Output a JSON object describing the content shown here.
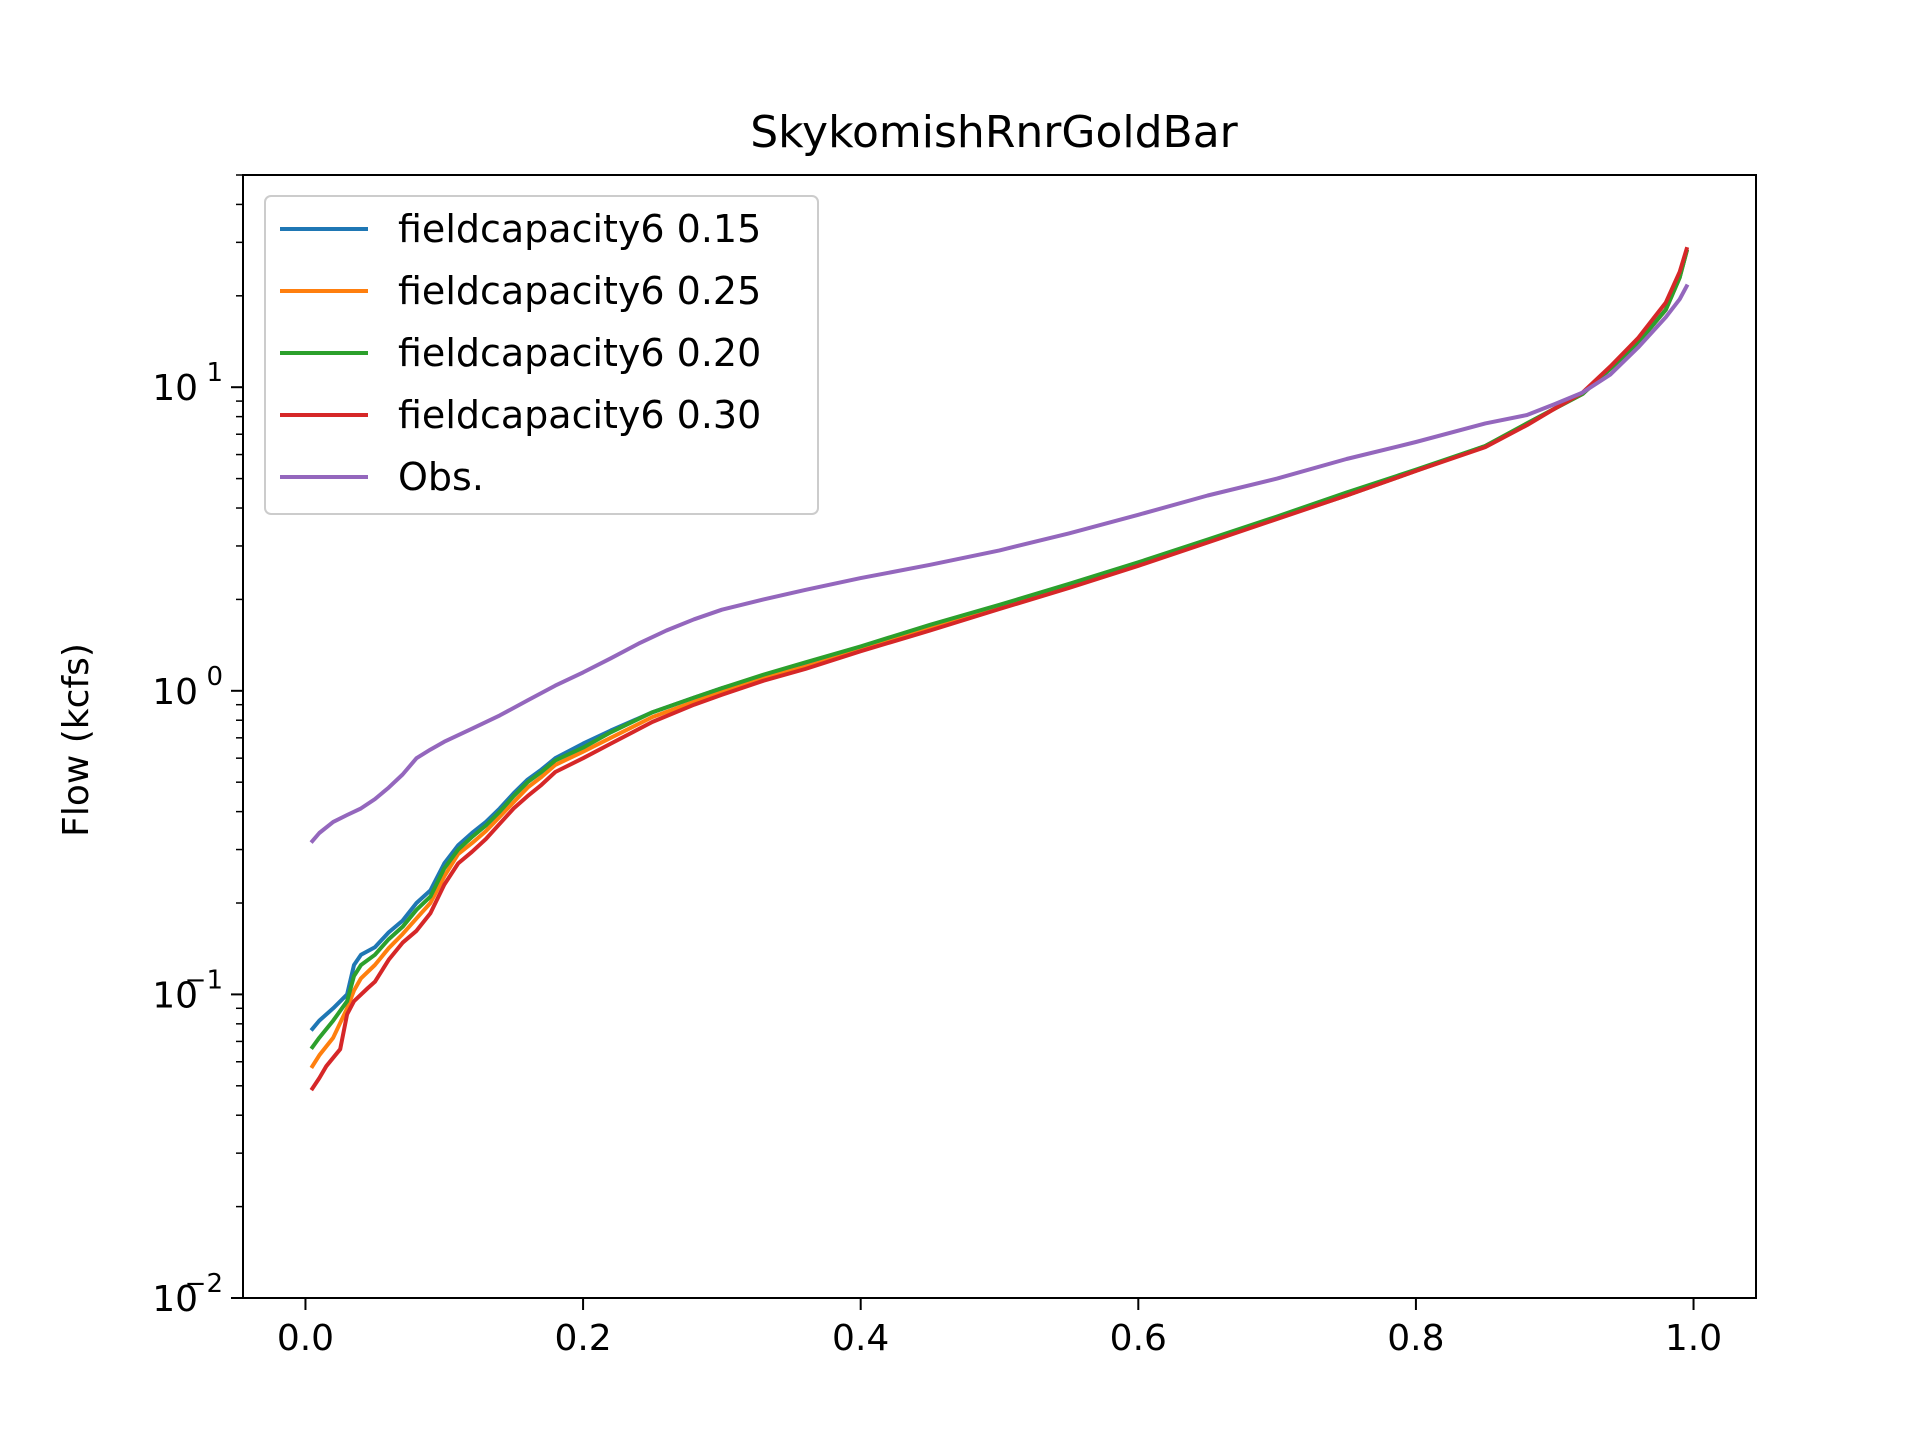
{
  "chart_data": {
    "type": "line",
    "title": "SkykomishRnrGoldBar",
    "xlabel": "",
    "ylabel": "Flow (kcfs)",
    "xlim": [
      -0.045,
      1.045
    ],
    "ylim": [
      0.01,
      50
    ],
    "yscale": "log",
    "grid": false,
    "legend_position": "top-left",
    "x_ticks": [
      {
        "value": 0.0,
        "label": "0.0"
      },
      {
        "value": 0.2,
        "label": "0.2"
      },
      {
        "value": 0.4,
        "label": "0.4"
      },
      {
        "value": 0.6,
        "label": "0.6"
      },
      {
        "value": 0.8,
        "label": "0.8"
      },
      {
        "value": 1.0,
        "label": "1.0"
      }
    ],
    "y_ticks": [
      {
        "value": 0.01,
        "base": "10",
        "exp": "−2"
      },
      {
        "value": 0.1,
        "base": "10",
        "exp": "−1"
      },
      {
        "value": 1,
        "base": "10",
        "exp": "0"
      },
      {
        "value": 10,
        "base": "10",
        "exp": "1"
      }
    ],
    "series": [
      {
        "name": "fieldcapacity6 0.15",
        "color": "#1f77b4",
        "points": [
          [
            0.005,
            0.077
          ],
          [
            0.01,
            0.082
          ],
          [
            0.02,
            0.09
          ],
          [
            0.03,
            0.1
          ],
          [
            0.035,
            0.125
          ],
          [
            0.04,
            0.135
          ],
          [
            0.05,
            0.143
          ],
          [
            0.06,
            0.16
          ],
          [
            0.07,
            0.175
          ],
          [
            0.08,
            0.2
          ],
          [
            0.09,
            0.22
          ],
          [
            0.1,
            0.27
          ],
          [
            0.11,
            0.31
          ],
          [
            0.12,
            0.34
          ],
          [
            0.13,
            0.37
          ],
          [
            0.14,
            0.41
          ],
          [
            0.15,
            0.46
          ],
          [
            0.16,
            0.51
          ],
          [
            0.17,
            0.55
          ],
          [
            0.18,
            0.6
          ],
          [
            0.2,
            0.67
          ],
          [
            0.22,
            0.74
          ],
          [
            0.25,
            0.85
          ],
          [
            0.28,
            0.95
          ],
          [
            0.3,
            1.02
          ],
          [
            0.33,
            1.12
          ],
          [
            0.36,
            1.23
          ],
          [
            0.4,
            1.38
          ],
          [
            0.45,
            1.62
          ],
          [
            0.5,
            1.9
          ],
          [
            0.55,
            2.2
          ],
          [
            0.6,
            2.6
          ],
          [
            0.65,
            3.1
          ],
          [
            0.7,
            3.7
          ],
          [
            0.75,
            4.4
          ],
          [
            0.8,
            5.3
          ],
          [
            0.85,
            6.4
          ],
          [
            0.88,
            7.6
          ],
          [
            0.9,
            8.5
          ],
          [
            0.92,
            9.5
          ],
          [
            0.94,
            11.5
          ],
          [
            0.96,
            14
          ],
          [
            0.98,
            18
          ],
          [
            0.99,
            23
          ],
          [
            0.995,
            28
          ]
        ]
      },
      {
        "name": "fieldcapacity6 0.25",
        "color": "#ff7f0e",
        "points": [
          [
            0.005,
            0.058
          ],
          [
            0.01,
            0.063
          ],
          [
            0.02,
            0.072
          ],
          [
            0.03,
            0.09
          ],
          [
            0.035,
            0.103
          ],
          [
            0.04,
            0.113
          ],
          [
            0.05,
            0.125
          ],
          [
            0.06,
            0.142
          ],
          [
            0.07,
            0.158
          ],
          [
            0.08,
            0.178
          ],
          [
            0.09,
            0.2
          ],
          [
            0.1,
            0.245
          ],
          [
            0.11,
            0.29
          ],
          [
            0.12,
            0.315
          ],
          [
            0.13,
            0.345
          ],
          [
            0.14,
            0.385
          ],
          [
            0.15,
            0.43
          ],
          [
            0.16,
            0.48
          ],
          [
            0.17,
            0.52
          ],
          [
            0.18,
            0.57
          ],
          [
            0.2,
            0.63
          ],
          [
            0.22,
            0.7
          ],
          [
            0.25,
            0.82
          ],
          [
            0.28,
            0.92
          ],
          [
            0.3,
            0.99
          ],
          [
            0.33,
            1.1
          ],
          [
            0.36,
            1.2
          ],
          [
            0.4,
            1.36
          ],
          [
            0.45,
            1.6
          ],
          [
            0.5,
            1.88
          ],
          [
            0.55,
            2.2
          ],
          [
            0.6,
            2.6
          ],
          [
            0.65,
            3.1
          ],
          [
            0.7,
            3.7
          ],
          [
            0.75,
            4.4
          ],
          [
            0.8,
            5.3
          ],
          [
            0.85,
            6.4
          ],
          [
            0.88,
            7.6
          ],
          [
            0.9,
            8.5
          ],
          [
            0.92,
            9.5
          ],
          [
            0.94,
            11.5
          ],
          [
            0.96,
            14
          ],
          [
            0.98,
            18
          ],
          [
            0.99,
            23
          ],
          [
            0.995,
            28
          ]
        ]
      },
      {
        "name": "fieldcapacity6 0.20",
        "color": "#2ca02c",
        "points": [
          [
            0.005,
            0.067
          ],
          [
            0.01,
            0.072
          ],
          [
            0.02,
            0.082
          ],
          [
            0.03,
            0.095
          ],
          [
            0.035,
            0.115
          ],
          [
            0.04,
            0.125
          ],
          [
            0.05,
            0.135
          ],
          [
            0.06,
            0.152
          ],
          [
            0.07,
            0.167
          ],
          [
            0.08,
            0.19
          ],
          [
            0.09,
            0.21
          ],
          [
            0.1,
            0.26
          ],
          [
            0.11,
            0.3
          ],
          [
            0.12,
            0.33
          ],
          [
            0.13,
            0.36
          ],
          [
            0.14,
            0.4
          ],
          [
            0.15,
            0.45
          ],
          [
            0.16,
            0.5
          ],
          [
            0.17,
            0.54
          ],
          [
            0.18,
            0.59
          ],
          [
            0.2,
            0.65
          ],
          [
            0.22,
            0.73
          ],
          [
            0.25,
            0.85
          ],
          [
            0.28,
            0.95
          ],
          [
            0.3,
            1.02
          ],
          [
            0.33,
            1.13
          ],
          [
            0.36,
            1.24
          ],
          [
            0.4,
            1.4
          ],
          [
            0.45,
            1.65
          ],
          [
            0.5,
            1.92
          ],
          [
            0.55,
            2.25
          ],
          [
            0.6,
            2.65
          ],
          [
            0.65,
            3.15
          ],
          [
            0.7,
            3.75
          ],
          [
            0.75,
            4.5
          ],
          [
            0.8,
            5.35
          ],
          [
            0.85,
            6.4
          ],
          [
            0.88,
            7.6
          ],
          [
            0.9,
            8.5
          ],
          [
            0.92,
            9.5
          ],
          [
            0.94,
            11.5
          ],
          [
            0.96,
            14
          ],
          [
            0.98,
            18
          ],
          [
            0.99,
            23
          ],
          [
            0.995,
            28
          ]
        ]
      },
      {
        "name": "fieldcapacity6 0.30",
        "color": "#d62728",
        "points": [
          [
            0.005,
            0.049
          ],
          [
            0.01,
            0.053
          ],
          [
            0.015,
            0.058
          ],
          [
            0.025,
            0.066
          ],
          [
            0.03,
            0.086
          ],
          [
            0.035,
            0.095
          ],
          [
            0.045,
            0.105
          ],
          [
            0.05,
            0.11
          ],
          [
            0.06,
            0.13
          ],
          [
            0.07,
            0.148
          ],
          [
            0.08,
            0.162
          ],
          [
            0.09,
            0.185
          ],
          [
            0.1,
            0.23
          ],
          [
            0.11,
            0.27
          ],
          [
            0.12,
            0.295
          ],
          [
            0.13,
            0.325
          ],
          [
            0.14,
            0.365
          ],
          [
            0.15,
            0.41
          ],
          [
            0.16,
            0.45
          ],
          [
            0.17,
            0.49
          ],
          [
            0.18,
            0.54
          ],
          [
            0.2,
            0.6
          ],
          [
            0.22,
            0.67
          ],
          [
            0.25,
            0.79
          ],
          [
            0.28,
            0.9
          ],
          [
            0.3,
            0.97
          ],
          [
            0.33,
            1.08
          ],
          [
            0.36,
            1.18
          ],
          [
            0.4,
            1.35
          ],
          [
            0.45,
            1.58
          ],
          [
            0.5,
            1.86
          ],
          [
            0.55,
            2.18
          ],
          [
            0.6,
            2.58
          ],
          [
            0.65,
            3.08
          ],
          [
            0.7,
            3.68
          ],
          [
            0.75,
            4.4
          ],
          [
            0.8,
            5.3
          ],
          [
            0.85,
            6.35
          ],
          [
            0.88,
            7.5
          ],
          [
            0.9,
            8.5
          ],
          [
            0.92,
            9.6
          ],
          [
            0.94,
            11.7
          ],
          [
            0.96,
            14.5
          ],
          [
            0.98,
            19
          ],
          [
            0.99,
            24
          ],
          [
            0.995,
            28.5
          ]
        ]
      },
      {
        "name": "Obs.",
        "color": "#9467bd",
        "points": [
          [
            0.005,
            0.32
          ],
          [
            0.01,
            0.34
          ],
          [
            0.02,
            0.37
          ],
          [
            0.03,
            0.39
          ],
          [
            0.04,
            0.41
          ],
          [
            0.05,
            0.44
          ],
          [
            0.06,
            0.48
          ],
          [
            0.07,
            0.53
          ],
          [
            0.08,
            0.6
          ],
          [
            0.09,
            0.64
          ],
          [
            0.1,
            0.68
          ],
          [
            0.12,
            0.75
          ],
          [
            0.14,
            0.83
          ],
          [
            0.16,
            0.93
          ],
          [
            0.18,
            1.04
          ],
          [
            0.2,
            1.15
          ],
          [
            0.22,
            1.28
          ],
          [
            0.24,
            1.43
          ],
          [
            0.26,
            1.58
          ],
          [
            0.28,
            1.72
          ],
          [
            0.3,
            1.85
          ],
          [
            0.33,
            2.0
          ],
          [
            0.36,
            2.15
          ],
          [
            0.4,
            2.35
          ],
          [
            0.45,
            2.6
          ],
          [
            0.5,
            2.9
          ],
          [
            0.55,
            3.3
          ],
          [
            0.6,
            3.8
          ],
          [
            0.65,
            4.4
          ],
          [
            0.7,
            5.0
          ],
          [
            0.75,
            5.8
          ],
          [
            0.8,
            6.6
          ],
          [
            0.85,
            7.6
          ],
          [
            0.88,
            8.1
          ],
          [
            0.9,
            8.8
          ],
          [
            0.92,
            9.6
          ],
          [
            0.94,
            11
          ],
          [
            0.96,
            13.5
          ],
          [
            0.98,
            17
          ],
          [
            0.99,
            19.5
          ],
          [
            0.995,
            21.5
          ]
        ]
      }
    ]
  }
}
